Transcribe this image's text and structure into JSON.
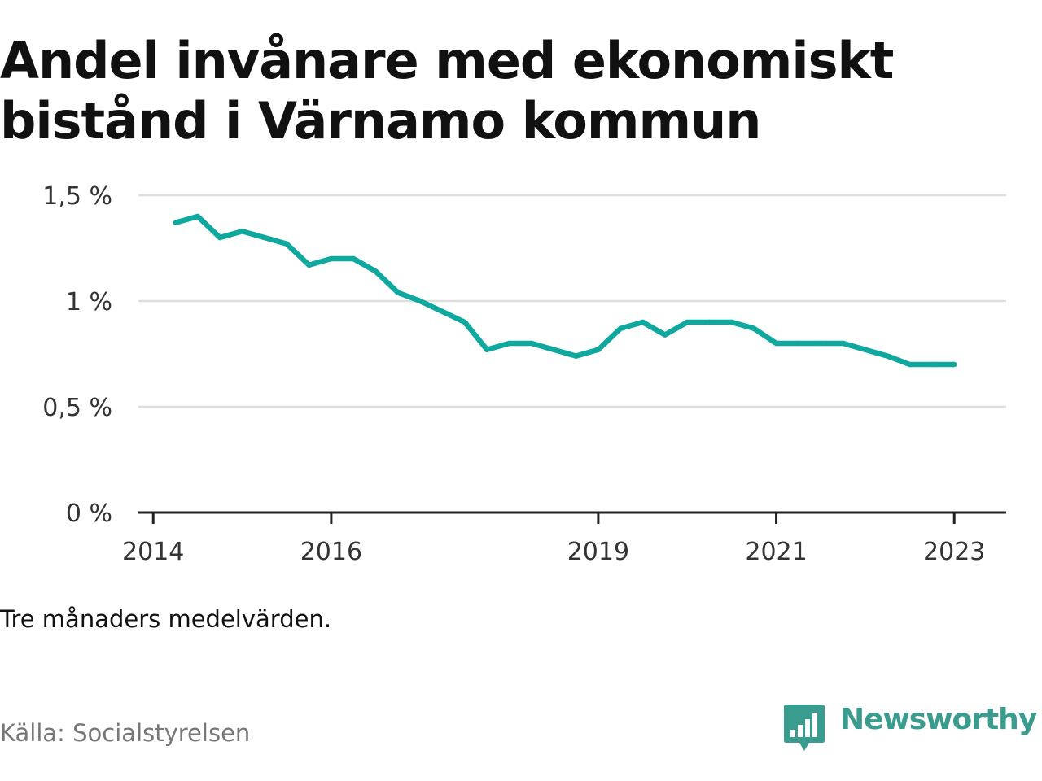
{
  "title_lines": [
    "Andel invånare med ekonomiskt",
    "bistånd i Värnamo kommun"
  ],
  "note": "Tre månaders medelvärden.",
  "source": "Källa: Socialstyrelsen",
  "brand": {
    "name": "Newsworthy",
    "icon": "bar-chart-speech-bubble-icon"
  },
  "colors": {
    "line": "#0fa89e",
    "brand": "#3a9c8f",
    "grid": "#dddddd",
    "axis": "#222222",
    "text": "#111111",
    "muted": "#777777"
  },
  "chart_data": {
    "type": "line",
    "title": "Andel invånare med ekonomiskt bistånd i Värnamo kommun",
    "xlabel": "",
    "ylabel": "",
    "ylim": [
      0,
      1.5
    ],
    "xlim": [
      "2013-11",
      "2023-08"
    ],
    "y_ticks": [
      {
        "value": 0,
        "label": "0 %"
      },
      {
        "value": 0.5,
        "label": "0,5 %"
      },
      {
        "value": 1,
        "label": "1 %"
      },
      {
        "value": 1.5,
        "label": "1,5 %"
      }
    ],
    "x_ticks": [
      {
        "value": "2014-01",
        "label": "2014"
      },
      {
        "value": "2016-01",
        "label": "2016"
      },
      {
        "value": "2019-01",
        "label": "2019"
      },
      {
        "value": "2021-01",
        "label": "2021"
      },
      {
        "value": "2023-01",
        "label": "2023"
      }
    ],
    "grid": true,
    "series": [
      {
        "x": [
          "2014-04",
          "2014-07",
          "2014-10",
          "2015-01",
          "2015-04",
          "2015-07",
          "2015-10",
          "2016-01",
          "2016-04",
          "2016-07",
          "2016-10",
          "2017-01",
          "2017-04",
          "2017-07",
          "2017-10",
          "2018-01",
          "2018-04",
          "2018-07",
          "2018-10",
          "2019-01",
          "2019-04",
          "2019-07",
          "2019-10",
          "2020-01",
          "2020-04",
          "2020-07",
          "2020-10",
          "2021-01",
          "2021-04",
          "2021-07",
          "2021-10",
          "2022-01",
          "2022-04",
          "2022-07",
          "2022-10",
          "2023-01"
        ],
        "values": [
          1.37,
          1.4,
          1.3,
          1.33,
          1.3,
          1.27,
          1.17,
          1.2,
          1.2,
          1.14,
          1.04,
          1.0,
          0.95,
          0.9,
          0.77,
          0.8,
          0.8,
          0.77,
          0.74,
          0.77,
          0.87,
          0.9,
          0.84,
          0.9,
          0.9,
          0.9,
          0.87,
          0.8,
          0.8,
          0.8,
          0.8,
          0.77,
          0.74,
          0.7,
          0.7,
          0.7
        ]
      }
    ]
  }
}
